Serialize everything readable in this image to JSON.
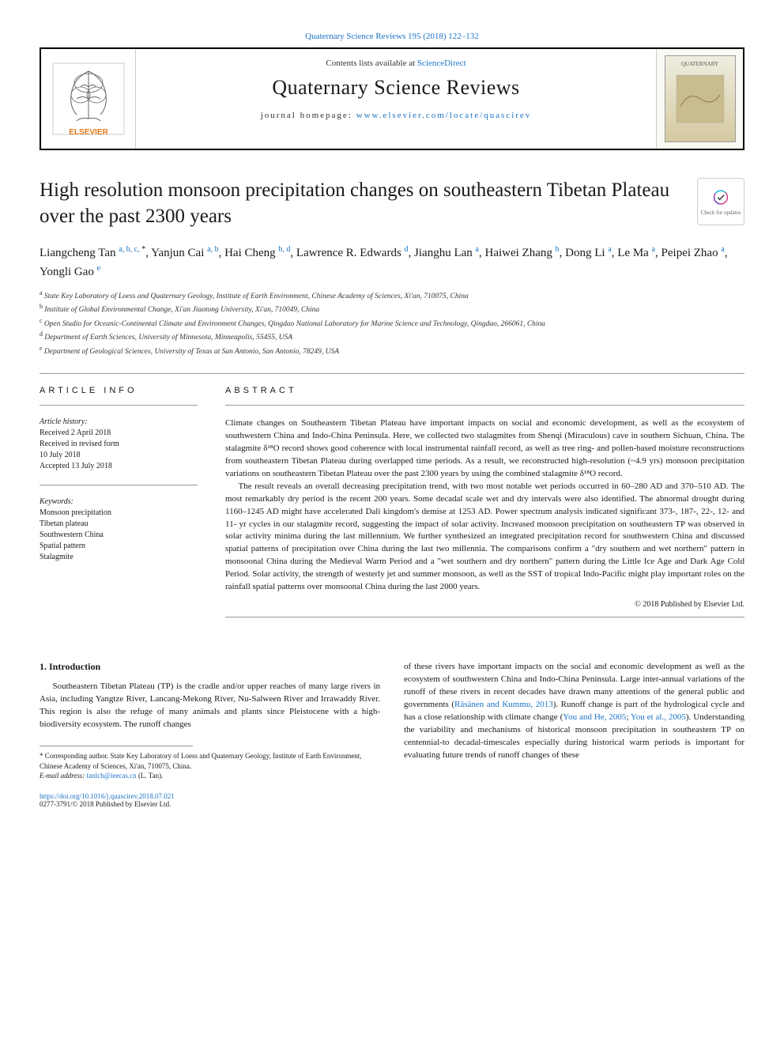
{
  "top_link": "Quaternary Science Reviews 195 (2018) 122–132",
  "header": {
    "contents_prefix": "Contents lists available at ",
    "contents_link": "ScienceDirect",
    "journal_name": "Quaternary Science Reviews",
    "homepage_prefix": "journal homepage: ",
    "homepage_link": "www.elsevier.com/locate/quascirev",
    "cover_label": "QUATERNARY"
  },
  "updates_badge": "Check for updates",
  "article_title": "High resolution monsoon precipitation changes on southeastern Tibetan Plateau over the past 2300 years",
  "authors_html": "Liangcheng Tan <sup>a, b, c, </sup><sup class='star'>*</sup>, Yanjun Cai <sup>a, b</sup>, Hai Cheng <sup>b, d</sup>, Lawrence R. Edwards <sup>d</sup>, Jianghu Lan <sup>a</sup>, Haiwei Zhang <sup>b</sup>, Dong Li <sup>a</sup>, Le Ma <sup>a</sup>, Peipei Zhao <sup>a</sup>, Yongli Gao <sup>e</sup>",
  "affiliations": [
    "State Key Laboratory of Loess and Quaternary Geology, Institute of Earth Environment, Chinese Academy of Sciences, Xi'an, 710075, China",
    "Institute of Global Environmental Change, Xi'an Jiaotong University, Xi'an, 710049, China",
    "Open Studio for Oceanic-Continental Climate and Environment Changes, Qingdao National Laboratory for Marine Science and Technology, Qingdao, 266061, China",
    "Department of Earth Sciences, University of Minnesota, Minneapolis, 55455, USA",
    "Department of Geological Sciences, University of Texas at San Antonio, San Antonio, 78249, USA"
  ],
  "aff_labels": [
    "a",
    "b",
    "c",
    "d",
    "e"
  ],
  "article_info": {
    "heading": "ARTICLE INFO",
    "history_label": "Article history:",
    "history_lines": [
      "Received 2 April 2018",
      "Received in revised form",
      "10 July 2018",
      "Accepted 13 July 2018"
    ],
    "keywords_label": "Keywords:",
    "keywords": [
      "Monsoon precipitation",
      "Tibetan plateau",
      "Southwestern China",
      "Spatial pattern",
      "Stalagmite"
    ]
  },
  "abstract": {
    "heading": "ABSTRACT",
    "p1": "Climate changes on Southeastern Tibetan Plateau have important impacts on social and economic development, as well as the ecosystem of southwestern China and Indo-China Peninsula. Here, we collected two stalagmites from Shenqi (Miraculous) cave in southern Sichuan, China. The stalagmite δ¹⁸O record shows good coherence with local instrumental rainfall record, as well as tree ring- and pollen-based moisture reconstructions from southeastern Tibetan Plateau during overlapped time periods. As a result, we reconstructed high-resolution (~4.9 yrs) monsoon precipitation variations on southeastern Tibetan Plateau over the past 2300 years by using the combined stalagmite δ¹⁸O record.",
    "p2": "The result reveals an overall decreasing precipitation trend, with two most notable wet periods occurred in 60–280 AD and 370–510 AD. The most remarkably dry period is the recent 200 years. Some decadal scale wet and dry intervals were also identified. The abnormal drought during 1160–1245 AD might have accelerated Dali kingdom's demise at 1253 AD. Power spectrum analysis indicated significant 373-, 187-, 22-, 12- and 11- yr cycles in our stalagmite record, suggesting the impact of solar activity. Increased monsoon precipitation on southeastern TP was observed in solar activity minima during the last millennium. We further synthesized an integrated precipitation record for southwestern China and discussed spatial patterns of precipitation over China during the last two millennia. The comparisons confirm a \"dry southern and wet northern\" pattern in monsoonal China during the Medieval Warm Period and a \"wet southern and dry northern\" pattern during the Little Ice Age and Dark Age Cold Period. Solar activity, the strength of westerly jet and summer monsoon, as well as the SST of tropical Indo-Pacific might play important roles on the rainfall spatial patterns over monsoonal China during the last 2000 years.",
    "copyright": "© 2018 Published by Elsevier Ltd."
  },
  "body": {
    "section_heading": "1. Introduction",
    "col1_p1": "Southeastern Tibetan Plateau (TP) is the cradle and/or upper reaches of many large rivers in Asia, including Yangtze River, Lancang-Mekong River, Nu-Salween River and Irrawaddy River. This region is also the refuge of many animals and plants since Pleistocene with a high-biodiversity ecosystem. The runoff changes",
    "col2_p1_before_cite1": "of these rivers have important impacts on the social and economic development as well as the ecosystem of southwestern China and Indo-China Peninsula. Large inter-annual variations of the runoff of these rivers in recent decades have drawn many attentions of the general public and governments (",
    "cite1": "Räsänen and Kummu, 2013",
    "col2_p1_mid1": "). Runoff change is part of the hydrological cycle and has a close relationship with climate change (",
    "cite2": "You and He, 2005",
    "col2_p1_sep": "; ",
    "cite3": "You et al., 2005",
    "col2_p1_after": "). Understanding the variability and mechanisms of historical monsoon precipitation in southeastern TP on centennial-to decadal-timescales especially during historical warm periods is important for evaluating future trends of runoff changes of these"
  },
  "footnote": {
    "corr": "* Corresponding author. State Key Laboratory of Loess and Quaternary Geology, Institute of Earth Environment, Chinese Academy of Sciences, Xi'an, 710075, China.",
    "email_label": "E-mail address: ",
    "email": "tanlch@ieecas.cn",
    "email_suffix": " (L. Tan)."
  },
  "doi": {
    "link": "https://doi.org/10.1016/j.quascirev.2018.07.021",
    "issn": "0277-3791/© 2018 Published by Elsevier Ltd."
  },
  "colors": {
    "link": "#1a73c7",
    "text": "#1a1a1a",
    "border": "#000000"
  }
}
